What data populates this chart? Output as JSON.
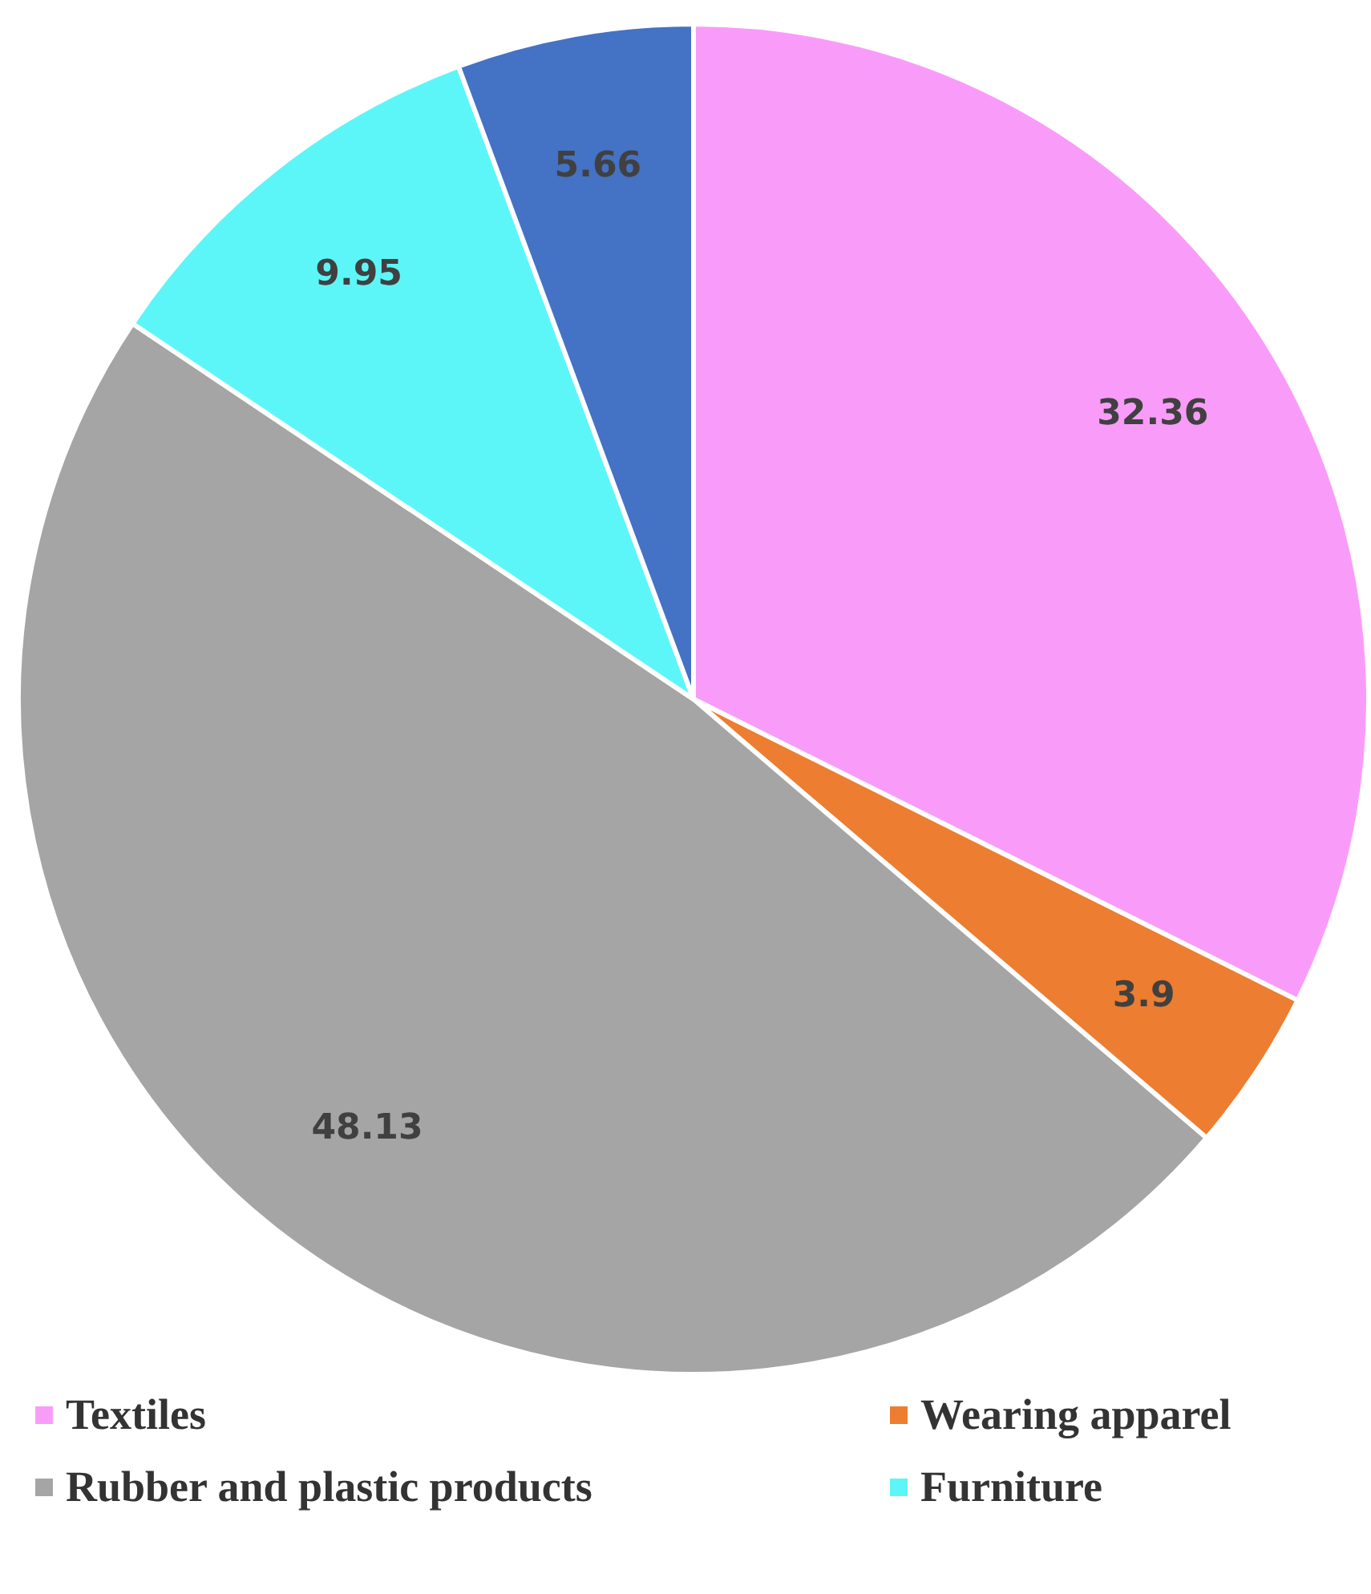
{
  "chart_data": {
    "type": "pie",
    "categories": [
      "Textiles",
      "Wearing apparel",
      "Rubber and plastic products",
      "Furniture",
      null
    ],
    "values": [
      32.36,
      3.9,
      48.13,
      9.95,
      5.66
    ],
    "colors": [
      "#f99cf9",
      "#ed7d31",
      "#a5a5a5",
      "#5cf6f9",
      "#4472c4"
    ],
    "data_labels": true,
    "legend": "bottom"
  }
}
